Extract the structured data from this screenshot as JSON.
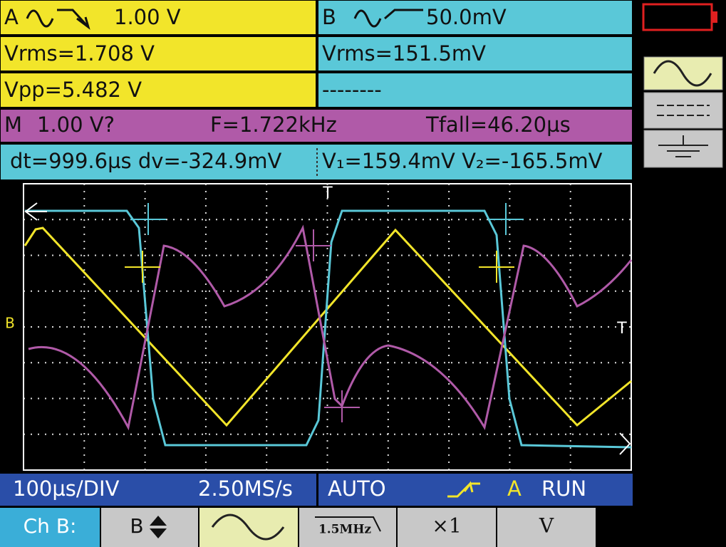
{
  "channel_a": {
    "label": "A",
    "scale": "1.00 V",
    "vrms": "Vrms=1.708 V",
    "vpp": "Vpp=5.482 V"
  },
  "channel_b": {
    "label": "B",
    "scale": "50.0mV",
    "vrms": "Vrms=151.5mV",
    "vpp": "--------"
  },
  "math": {
    "label": "M",
    "scale": "1.00 V?",
    "frequency": "F=1.722kHz",
    "fall_time": "Tfall=46.20µs"
  },
  "cursors": {
    "delta": "dt=999.6µs dv=-324.9mV",
    "levels": "V₁=159.4mV V₂=-165.5mV"
  },
  "screen_markers": [
    "T",
    "T",
    "B"
  ],
  "status_bar": {
    "timebase": "100µs/DIV",
    "sample_rate": "2.50MS/s",
    "trigger_mode": "AUTO",
    "trigger_source": "A",
    "run_state": "RUN"
  },
  "softkeys": [
    "Ch B:",
    "B",
    "1.5MHz",
    "×1",
    "V"
  ]
}
